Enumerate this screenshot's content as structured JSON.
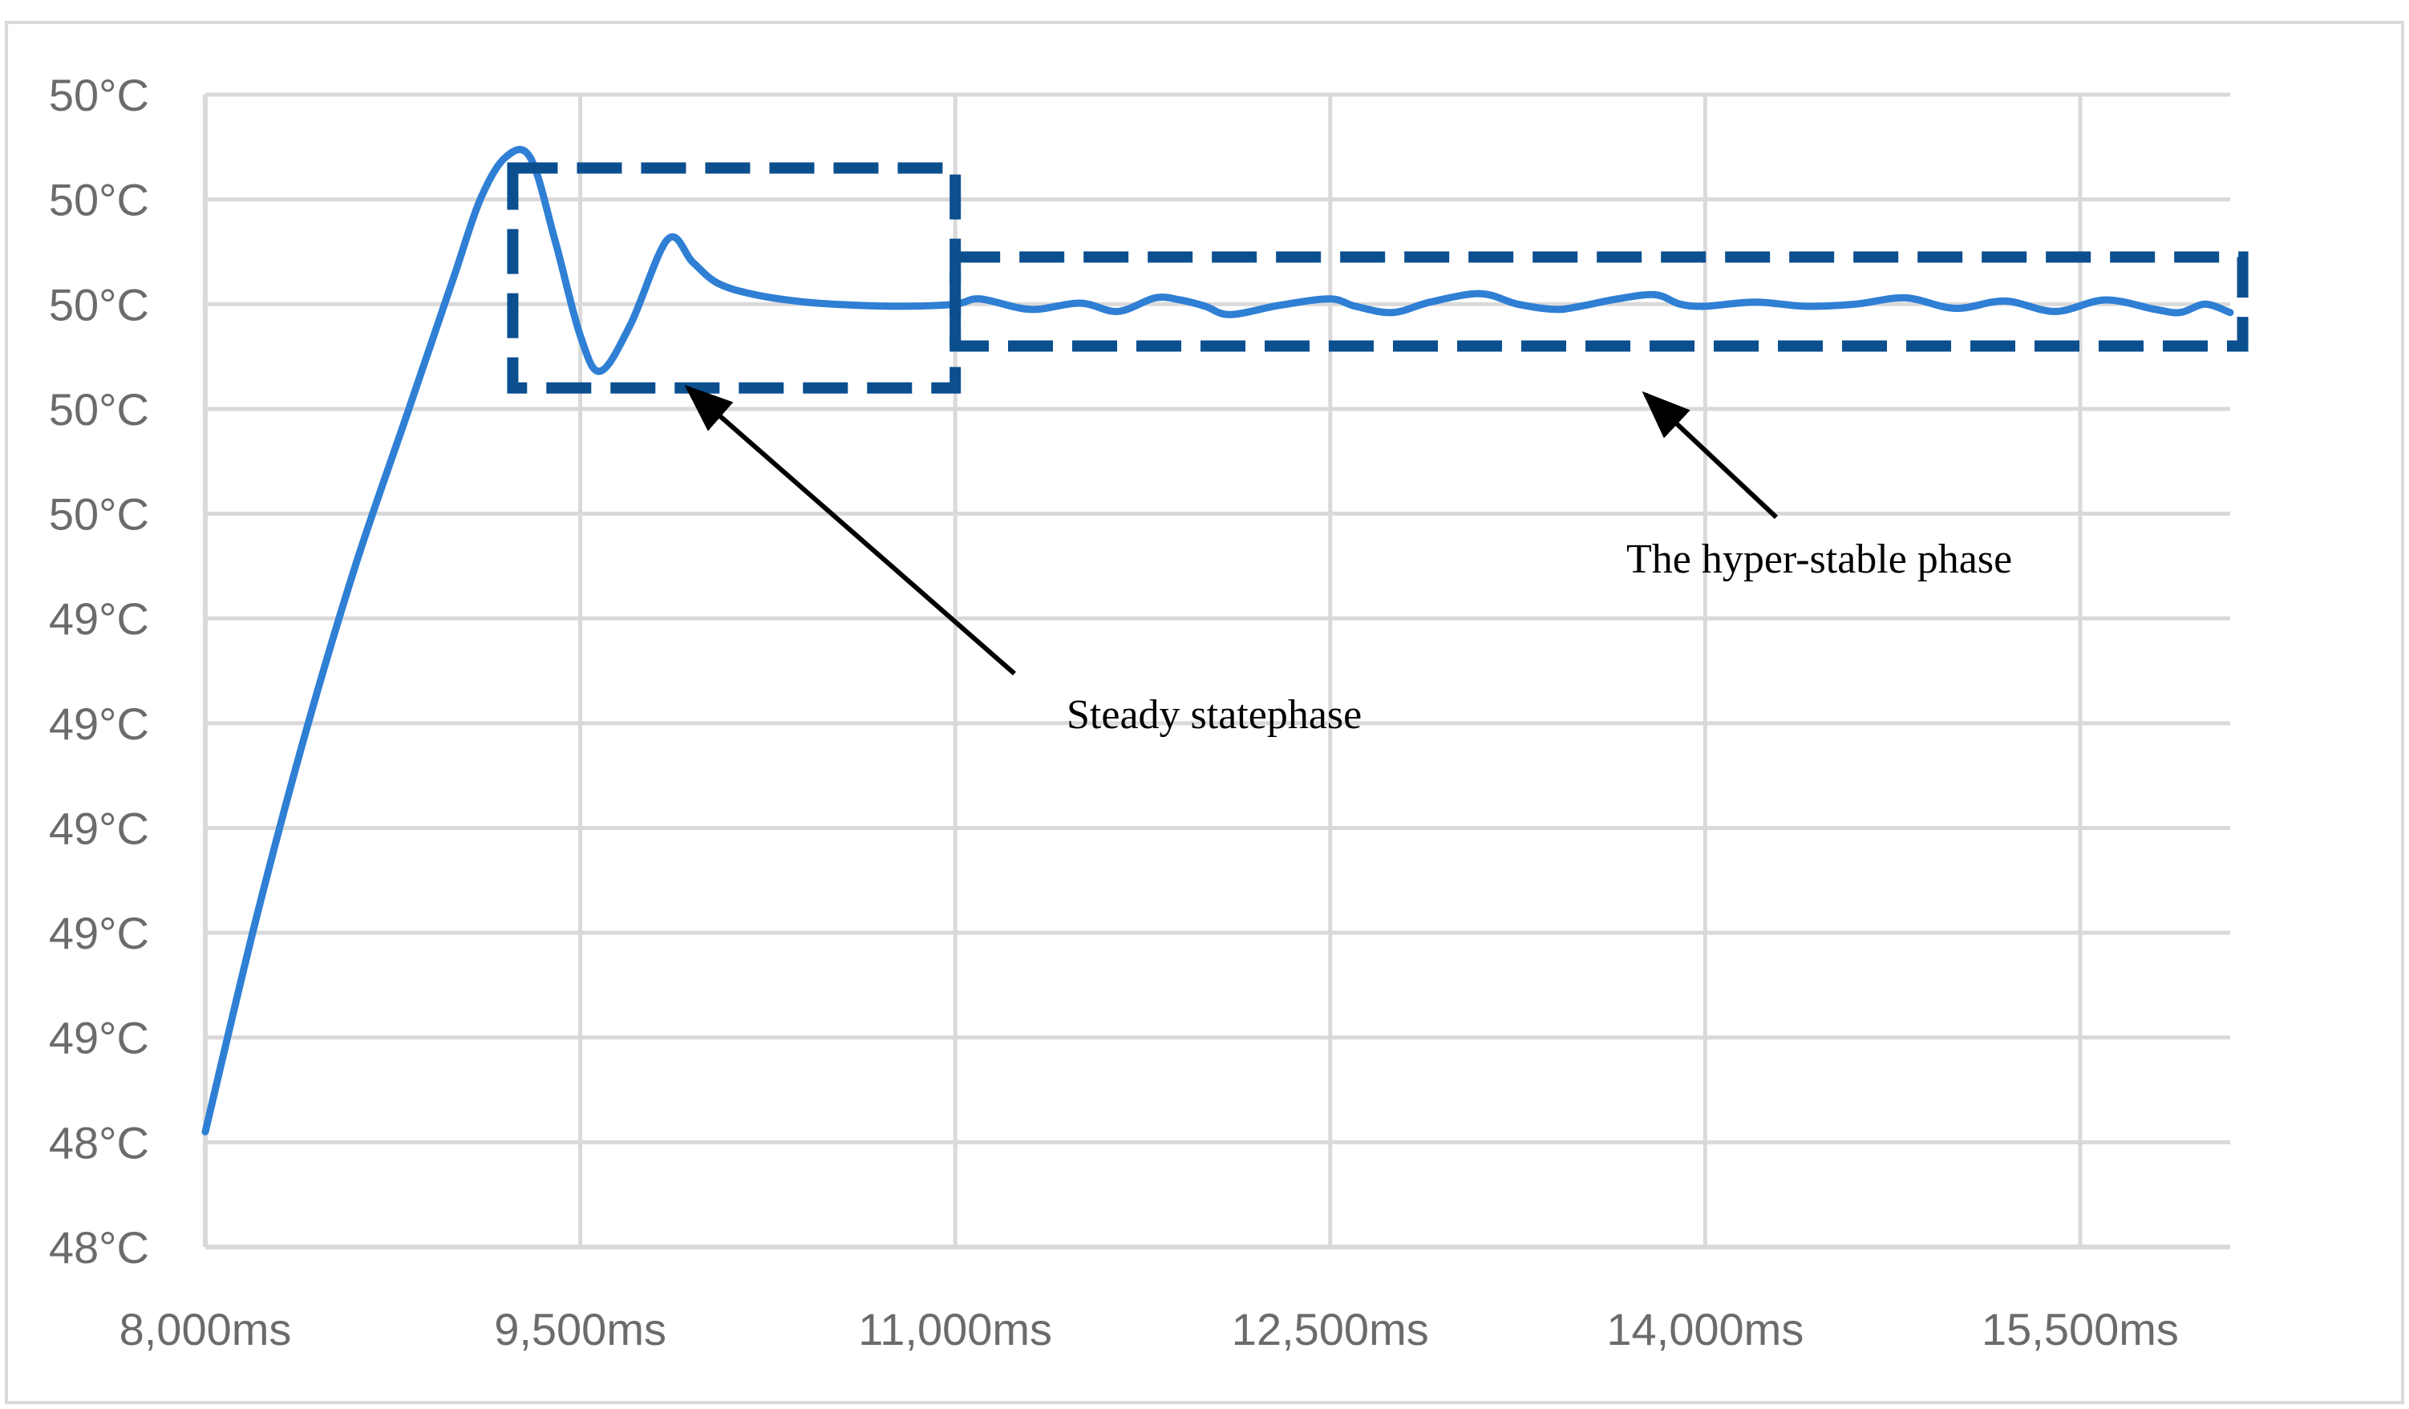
{
  "chart_data": {
    "type": "line",
    "title": "",
    "xlabel": "",
    "ylabel": "",
    "x_ticks": [
      {
        "value": 8000,
        "label": "8,000ms"
      },
      {
        "value": 9500,
        "label": "9,500ms"
      },
      {
        "value": 11000,
        "label": "11,000ms"
      },
      {
        "value": 12500,
        "label": "12,500ms"
      },
      {
        "value": 14000,
        "label": "14,000ms"
      },
      {
        "value": 15500,
        "label": "15,500ms"
      }
    ],
    "y_tick_labels": [
      "48°C",
      "48°C",
      "49°C",
      "49°C",
      "49°C",
      "49°C",
      "49°C",
      "50°C",
      "50°C",
      "50°C",
      "50°C",
      "50°C"
    ],
    "xlim": [
      8000,
      16100
    ],
    "y_index_range": [
      0,
      11
    ],
    "y_unit_note": "y values are in tick-index units (0 = lowest gridline, 11 = highest); tick labels are rounded °C",
    "grid": true,
    "legend": "none",
    "colors": {
      "series": "#2f7fd4",
      "box": "#0b4f8f",
      "annotation": "#000000",
      "grid": "#d9d9d9",
      "axis_text": "#6b6b6b",
      "border": "#d9d9d9"
    },
    "series": [
      {
        "points": [
          [
            8000,
            1.1
          ],
          [
            8200,
            3.1
          ],
          [
            8400,
            4.9
          ],
          [
            8600,
            6.5
          ],
          [
            8800,
            7.9
          ],
          [
            8900,
            8.6
          ],
          [
            9000,
            9.3
          ],
          [
            9100,
            10.0
          ],
          [
            9200,
            10.4
          ],
          [
            9300,
            10.4
          ],
          [
            9400,
            9.6
          ],
          [
            9500,
            8.7
          ],
          [
            9580,
            8.36
          ],
          [
            9700,
            8.8
          ],
          [
            9850,
            9.62
          ],
          [
            9950,
            9.4
          ],
          [
            10050,
            9.2
          ],
          [
            10200,
            9.09
          ],
          [
            10400,
            9.02
          ],
          [
            10600,
            8.99
          ],
          [
            10800,
            8.98
          ],
          [
            11000,
            9.0
          ],
          [
            11100,
            9.05
          ],
          [
            11300,
            8.95
          ],
          [
            11500,
            9.01
          ],
          [
            11650,
            8.93
          ],
          [
            11800,
            9.06
          ],
          [
            11900,
            9.04
          ],
          [
            12000,
            8.98
          ],
          [
            12100,
            8.9
          ],
          [
            12300,
            8.99
          ],
          [
            12500,
            9.05
          ],
          [
            12600,
            8.98
          ],
          [
            12750,
            8.92
          ],
          [
            12900,
            9.02
          ],
          [
            13100,
            9.1
          ],
          [
            13250,
            9.0
          ],
          [
            13400,
            8.95
          ],
          [
            13500,
            8.98
          ],
          [
            13650,
            9.05
          ],
          [
            13800,
            9.09
          ],
          [
            13900,
            9.0
          ],
          [
            14000,
            8.98
          ],
          [
            14200,
            9.02
          ],
          [
            14400,
            8.98
          ],
          [
            14600,
            9.0
          ],
          [
            14800,
            9.06
          ],
          [
            15000,
            8.96
          ],
          [
            15200,
            9.03
          ],
          [
            15400,
            8.93
          ],
          [
            15600,
            9.04
          ],
          [
            15800,
            8.95
          ],
          [
            15900,
            8.92
          ],
          [
            16000,
            9.0
          ],
          [
            16100,
            8.92
          ]
        ]
      }
    ],
    "annotations": [
      {
        "text": "Steady statephase",
        "box": {
          "x0": 9230,
          "x1": 11000,
          "y0": 8.2,
          "y1": 10.3
        }
      },
      {
        "text": "The hyper-stable phase",
        "box": {
          "x0": 11000,
          "x1": 16150,
          "y0": 8.6,
          "y1": 9.45
        }
      }
    ]
  }
}
